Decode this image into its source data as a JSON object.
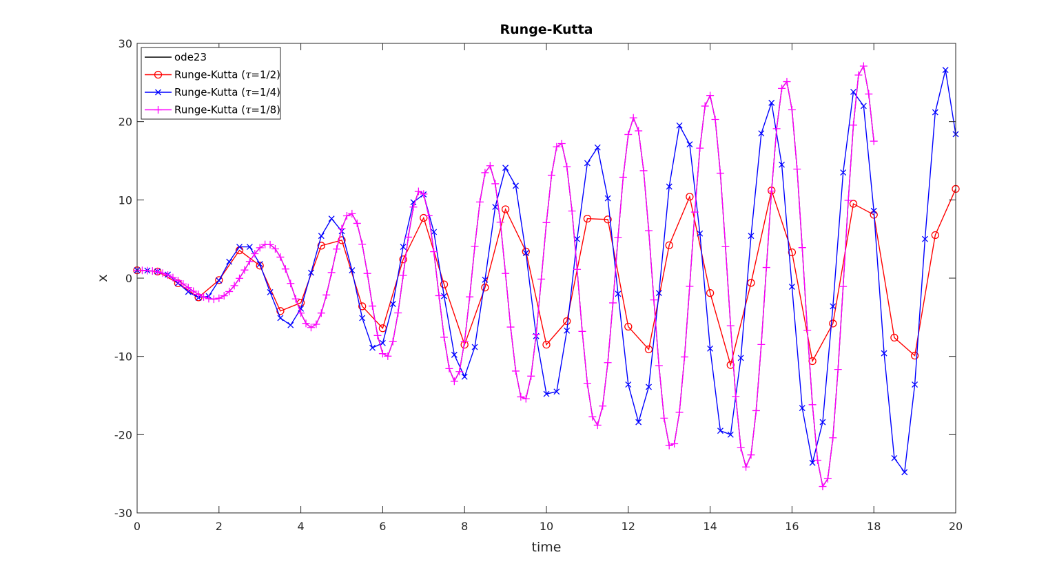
{
  "chart_data": {
    "type": "line",
    "title": "Runge-Kutta",
    "xlabel": "time",
    "ylabel": "x",
    "xlim": [
      0,
      20
    ],
    "ylim": [
      -30,
      30
    ],
    "xticks": [
      0,
      2,
      4,
      6,
      8,
      10,
      12,
      14,
      16,
      18,
      20
    ],
    "yticks": [
      -30,
      -20,
      -10,
      0,
      10,
      20,
      30
    ],
    "xtick_labels": [
      "0",
      "2",
      "4",
      "6",
      "8",
      "10",
      "12",
      "14",
      "16",
      "18",
      "20"
    ],
    "ytick_labels": [
      "-30",
      "-20",
      "-10",
      "0",
      "10",
      "20",
      "30"
    ],
    "grid": false,
    "legend_position": "top-left",
    "legend": [
      {
        "label": "ode23",
        "tau": ""
      },
      {
        "label": "Runge-Kutta (",
        "tau": "τ",
        "suffix": "=1/2)"
      },
      {
        "label": "Runge-Kutta (",
        "tau": "τ",
        "suffix": "=1/4)"
      },
      {
        "label": "Runge-Kutta (",
        "tau": "τ",
        "suffix": "=1/8)"
      }
    ],
    "series": [
      {
        "name": "ode23",
        "color": "#000000",
        "marker": "none",
        "dt": 0.125,
        "x0": 0,
        "values": [
          1.0,
          0.99,
          0.96,
          0.91,
          0.81,
          0.64,
          0.4,
          0.08,
          -0.31,
          -0.75,
          -1.21,
          -1.67,
          -2.08,
          -2.41,
          -2.63,
          -2.69,
          -2.57,
          -2.25,
          -1.71,
          -0.96,
          -0.02,
          1.04,
          2.13,
          3.12,
          3.88,
          4.3,
          4.28,
          3.74,
          2.69,
          1.17,
          -0.68,
          -2.65,
          -4.46,
          -5.78,
          -6.31,
          -5.89,
          -4.46,
          -2.15,
          0.71,
          3.72,
          6.32,
          7.96,
          8.24,
          7.0,
          4.33,
          0.6,
          -3.57,
          -7.33,
          -9.65,
          -9.97,
          -8.1,
          -4.44,
          0.35,
          5.24,
          9.09,
          11.08,
          10.75,
          7.98,
          3.38,
          -2.24,
          -7.55,
          -11.56,
          -13.17,
          -11.94,
          -8.12,
          -2.39,
          4.07,
          9.73,
          13.47,
          14.36,
          12.06,
          7.15,
          0.6,
          -6.25,
          -11.87,
          -15.17,
          -15.41,
          -12.52,
          -7.18,
          -0.12,
          7.1,
          13.15,
          16.78,
          17.2,
          14.24,
          8.58,
          1.12,
          -6.8,
          -13.48,
          -17.72,
          -18.79,
          -16.34,
          -10.8,
          -3.16,
          5.2,
          12.89,
          18.35,
          20.49,
          18.82,
          13.73,
          6.07,
          -2.78,
          -11.19,
          -17.89,
          -21.39,
          -21.16,
          -17.14,
          -10.07,
          -1.04,
          8.44,
          16.61,
          21.99,
          23.34,
          20.28,
          13.41,
          4.02,
          -6.08,
          -15.12,
          -21.65,
          -24.13,
          -22.59,
          -16.93,
          -8.48,
          1.36,
          11.13,
          19.1,
          24.25,
          25.11,
          21.51,
          13.93,
          3.9,
          -6.65,
          -16.17,
          -23.27,
          -26.62,
          -25.63,
          -20.4,
          -11.67,
          -1.06,
          9.94,
          19.56,
          25.95,
          27.1,
          23.53,
          17.5
        ]
      },
      {
        "name": "Runge-Kutta (τ=1/2)",
        "color": "#ff0000",
        "marker": "circle",
        "dt": 0.5,
        "x0": 0,
        "values": [
          1.0,
          0.85,
          -0.65,
          -2.45,
          -0.25,
          3.55,
          1.6,
          -4.2,
          -3.15,
          4.15,
          4.85,
          -3.6,
          -6.4,
          2.4,
          7.7,
          -0.8,
          -8.5,
          -1.2,
          8.8,
          3.4,
          -8.5,
          -5.5,
          7.6,
          7.5,
          -6.2,
          -9.1,
          4.2,
          10.4,
          -1.9,
          -11.1,
          -0.6,
          11.2,
          3.3,
          -10.6,
          -5.8,
          9.5,
          8.1,
          -7.6,
          -9.9,
          5.5,
          11.4
        ]
      },
      {
        "name": "Runge-Kutta (τ=1/4)",
        "color": "#0000ff",
        "marker": "cross",
        "dt": 0.25,
        "x0": 0,
        "values": [
          1.0,
          0.97,
          0.85,
          0.45,
          -0.65,
          -1.75,
          -2.5,
          -2.3,
          -0.3,
          2.1,
          4.0,
          4.0,
          1.8,
          -1.8,
          -5.1,
          -6.0,
          -3.9,
          0.7,
          5.4,
          7.6,
          6.0,
          1.0,
          -5.1,
          -8.9,
          -8.3,
          -3.3,
          4.0,
          9.7,
          10.7,
          5.9,
          -2.3,
          -9.8,
          -12.6,
          -8.8,
          -0.2,
          9.1,
          14.1,
          11.8,
          3.2,
          -7.4,
          -14.8,
          -14.5,
          -6.7,
          5.0,
          14.7,
          16.7,
          10.2,
          -2.0,
          -13.6,
          -18.4,
          -13.9,
          -1.9,
          11.7,
          19.5,
          17.1,
          5.7,
          -9.0,
          -19.5,
          -20.0,
          -10.2,
          5.4,
          18.5,
          22.4,
          14.5,
          -1.1,
          -16.6,
          -23.6,
          -18.4,
          -3.6,
          13.5,
          23.8,
          22.0,
          8.6,
          -9.6,
          -23.0,
          -24.8,
          -13.6,
          5.0,
          21.2,
          26.6,
          18.4
        ]
      },
      {
        "name": "Runge-Kutta (τ=1/8)",
        "color": "#ff00ff",
        "marker": "plus",
        "dt": 0.125,
        "x0": 0,
        "values": [
          1.0,
          0.99,
          0.96,
          0.91,
          0.81,
          0.64,
          0.4,
          0.08,
          -0.31,
          -0.75,
          -1.21,
          -1.67,
          -2.08,
          -2.41,
          -2.63,
          -2.69,
          -2.57,
          -2.25,
          -1.71,
          -0.96,
          -0.02,
          1.04,
          2.13,
          3.12,
          3.88,
          4.3,
          4.28,
          3.74,
          2.69,
          1.17,
          -0.68,
          -2.65,
          -4.46,
          -5.78,
          -6.31,
          -5.89,
          -4.46,
          -2.15,
          0.71,
          3.72,
          6.32,
          7.96,
          8.24,
          7.0,
          4.33,
          0.6,
          -3.57,
          -7.33,
          -9.65,
          -9.97,
          -8.1,
          -4.44,
          0.35,
          5.24,
          9.09,
          11.08,
          10.75,
          7.98,
          3.38,
          -2.24,
          -7.55,
          -11.56,
          -13.17,
          -11.94,
          -8.12,
          -2.39,
          4.07,
          9.73,
          13.47,
          14.36,
          12.06,
          7.15,
          0.6,
          -6.25,
          -11.87,
          -15.17,
          -15.41,
          -12.52,
          -7.18,
          -0.12,
          7.1,
          13.15,
          16.78,
          17.2,
          14.24,
          8.58,
          1.12,
          -6.8,
          -13.48,
          -17.72,
          -18.79,
          -16.34,
          -10.8,
          -3.16,
          5.2,
          12.89,
          18.35,
          20.49,
          18.82,
          13.73,
          6.07,
          -2.78,
          -11.19,
          -17.89,
          -21.39,
          -21.16,
          -17.14,
          -10.07,
          -1.04,
          8.44,
          16.61,
          21.99,
          23.34,
          20.28,
          13.41,
          4.02,
          -6.08,
          -15.12,
          -21.65,
          -24.13,
          -22.59,
          -16.93,
          -8.48,
          1.36,
          11.13,
          19.1,
          24.25,
          25.11,
          21.51,
          13.93,
          3.9,
          -6.65,
          -16.17,
          -23.27,
          -26.62,
          -25.63,
          -20.4,
          -11.67,
          -1.06,
          9.94,
          19.56,
          25.95,
          27.1,
          23.53,
          17.5
        ]
      }
    ]
  }
}
